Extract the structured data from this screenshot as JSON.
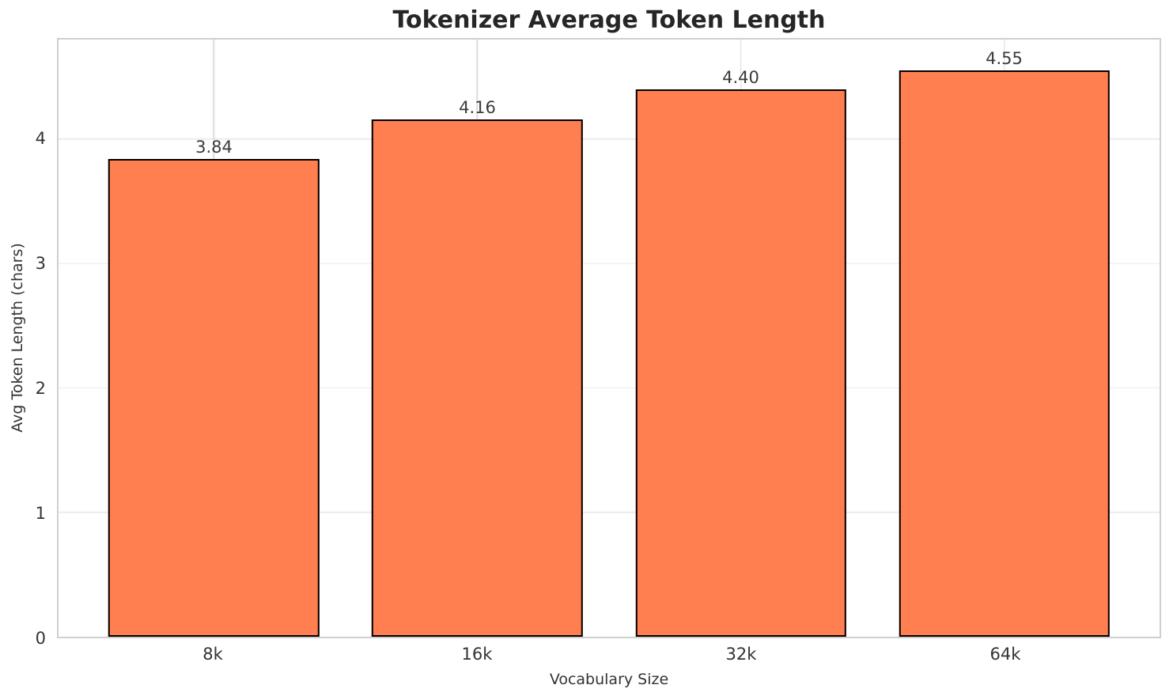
{
  "chart_data": {
    "type": "bar",
    "title": "Tokenizer Average Token Length",
    "xlabel": "Vocabulary Size",
    "ylabel": "Avg Token Length (chars)",
    "categories": [
      "8k",
      "16k",
      "32k",
      "64k"
    ],
    "values": [
      3.84,
      4.16,
      4.4,
      4.55
    ],
    "value_labels": [
      "3.84",
      "4.16",
      "4.40",
      "4.55"
    ],
    "yticks": [
      0,
      1,
      2,
      3,
      4
    ],
    "ytick_labels": [
      "0",
      "1",
      "2",
      "3",
      "4"
    ],
    "ylim": [
      0,
      4.8
    ],
    "grid": true,
    "legend": false,
    "bar_width_fraction": 0.8,
    "x_pad_fraction": 0.59,
    "colors": {
      "bar_fill": "#FF7F50",
      "bar_edge": "#000000",
      "grid_h": "#ececec",
      "grid_v": "#dcdcdc",
      "spine": "#cfcfcf",
      "title_text": "#262626",
      "tick_text": "#333333",
      "value_text": "#3a3a3a"
    }
  }
}
